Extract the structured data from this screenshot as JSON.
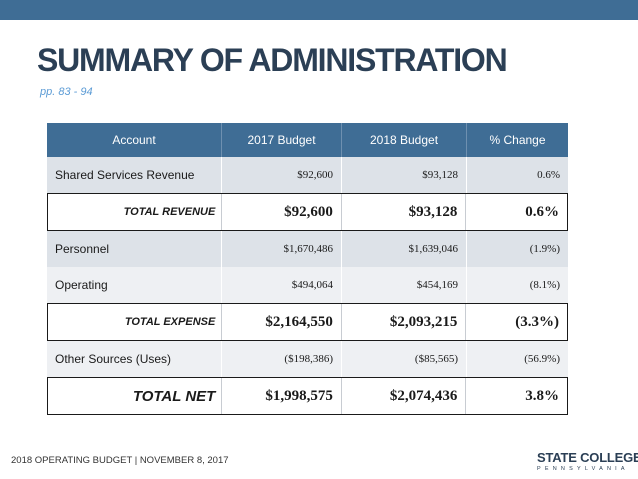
{
  "slide": {
    "title": "SUMMARY OF ADMINISTRATION",
    "subtitle": "pp. 83 - 94",
    "footer": "2018 OPERATING BUDGET | NOVEMBER 8, 2017"
  },
  "logo": {
    "main": "STATE COLLEGE",
    "sub": "PENNSYLVANIA"
  },
  "table": {
    "headers": [
      "Account",
      "2017 Budget",
      "2018 Budget",
      "% Change"
    ],
    "rows": [
      {
        "label": "Shared Services Revenue",
        "b2017": "$92,600",
        "b2018": "$93,128",
        "change": "0.6%"
      },
      {
        "label": "TOTAL REVENUE",
        "b2017": "$92,600",
        "b2018": "$93,128",
        "change": "0.6%"
      },
      {
        "label": "Personnel",
        "b2017": "$1,670,486",
        "b2018": "$1,639,046",
        "change": "(1.9%)"
      },
      {
        "label": "Operating",
        "b2017": "$494,064",
        "b2018": "$454,169",
        "change": "(8.1%)"
      },
      {
        "label": "TOTAL EXPENSE",
        "b2017": "$2,164,550",
        "b2018": "$2,093,215",
        "change": "(3.3%)"
      },
      {
        "label": "Other Sources (Uses)",
        "b2017": "($198,386)",
        "b2018": "($85,565)",
        "change": "(56.9%)"
      },
      {
        "label": "TOTAL NET",
        "b2017": "$1,998,575",
        "b2018": "$2,074,436",
        "change": "3.8%"
      }
    ]
  },
  "colors": {
    "header_bg": "#3f6d95",
    "title": "#2b3f55",
    "subtitle": "#5b9bd5"
  }
}
